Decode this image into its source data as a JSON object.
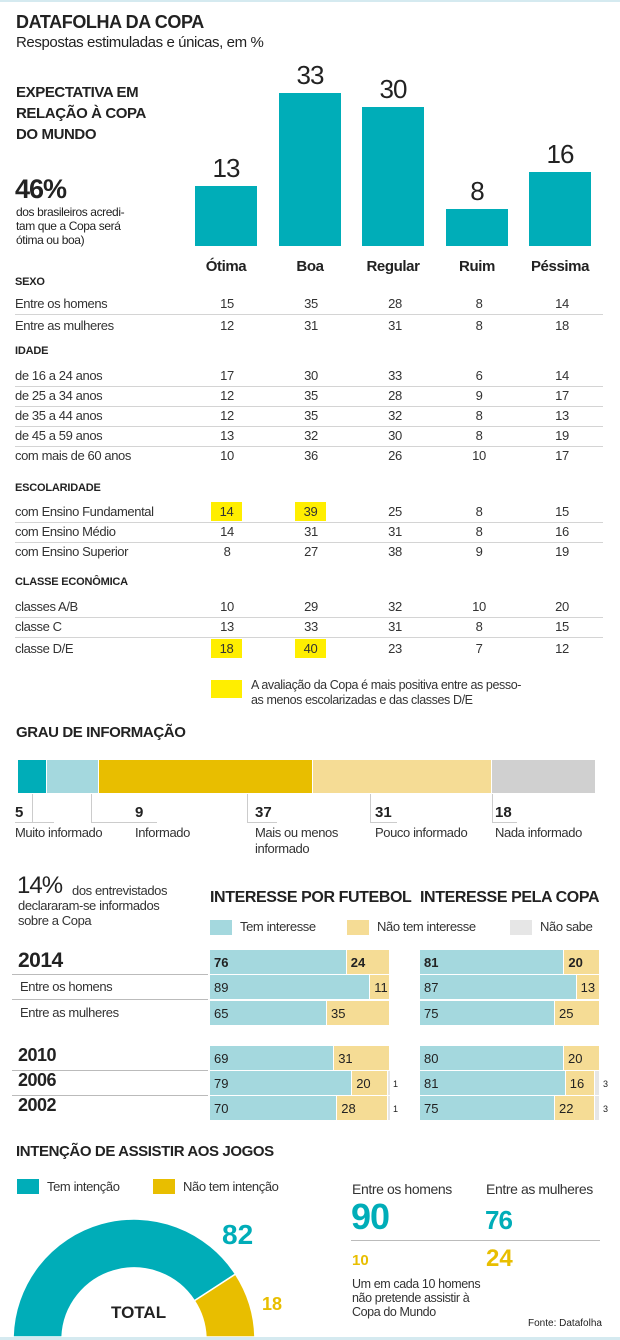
{
  "header": {
    "title": "DATAFOLHA DA COPA",
    "subtitle": "Respostas estimuladas e únicas, em %"
  },
  "intro": {
    "heading_lines": [
      "EXPECTATIVA EM",
      "RELAÇÃO À COPA",
      "DO MUNDO"
    ],
    "stat": "46%",
    "stat_lines": [
      "dos brasileiros acredi-",
      "tam que a Copa será",
      "ótima ou boa)"
    ]
  },
  "colors": {
    "teal": "#00adb8",
    "light_teal": "#a4d8de",
    "gold": "#e8be00",
    "light_gold": "#f5dc95",
    "gray": "#d0d0d0",
    "light_gray": "#e6e6e6",
    "highlight": "#ffee00"
  },
  "chart_data": [
    {
      "type": "bar",
      "title": "EXPECTATIVA EM RELAÇÃO À COPA DO MUNDO",
      "categories": [
        "Ótima",
        "Boa",
        "Regular",
        "Ruim",
        "Péssima"
      ],
      "values": [
        13,
        33,
        30,
        8,
        16
      ],
      "color": "#00adb8",
      "grid": false
    },
    {
      "type": "table",
      "columns": [
        "Ótima",
        "Boa",
        "Regular",
        "Ruim",
        "Péssima"
      ],
      "groups": [
        {
          "name": "SEXO",
          "rows": [
            {
              "label": "Entre os homens",
              "values": [
                "15",
                "35",
                "28",
                "8",
                "14"
              ]
            },
            {
              "label": "Entre as mulheres",
              "values": [
                "12",
                "31",
                "31",
                "8",
                "18"
              ]
            }
          ]
        },
        {
          "name": "IDADE",
          "rows": [
            {
              "label": "de 16 a 24 anos",
              "values": [
                "17",
                "30",
                "33",
                "6",
                "14"
              ]
            },
            {
              "label": "de 25 a 34 anos",
              "values": [
                "12",
                "35",
                "28",
                "9",
                "17"
              ]
            },
            {
              "label": "de 35 a 44 anos",
              "values": [
                "12",
                "35",
                "32",
                "8",
                "13"
              ]
            },
            {
              "label": "de 45 a 59 anos",
              "values": [
                "13",
                "32",
                "30",
                "8",
                "19"
              ]
            },
            {
              "label": "com mais de 60 anos",
              "values": [
                "10",
                "36",
                "26",
                "10",
                "17"
              ]
            }
          ]
        },
        {
          "name": "ESCOLARIDADE",
          "rows": [
            {
              "label": "com Ensino Fundamental",
              "values": [
                "14",
                "39",
                "25",
                "8",
                "15"
              ],
              "highlight": [
                0,
                1
              ]
            },
            {
              "label": "com Ensino Médio",
              "values": [
                "14",
                "31",
                "31",
                "8",
                "16"
              ]
            },
            {
              "label": "com Ensino Superior",
              "values": [
                "8",
                "27",
                "38",
                "9",
                "19"
              ]
            }
          ]
        },
        {
          "name": "CLASSE ECONÔMICA",
          "rows": [
            {
              "label": "classes A/B",
              "values": [
                "10",
                "29",
                "32",
                "10",
                "20"
              ]
            },
            {
              "label": "classe C",
              "values": [
                "13",
                "33",
                "31",
                "8",
                "15"
              ]
            },
            {
              "label": "classe D/E",
              "values": [
                "18",
                "40",
                "23",
                "7",
                "12"
              ],
              "highlight": [
                0,
                1
              ]
            }
          ]
        }
      ],
      "highlight_note_lines": [
        "A avaliação da Copa é mais positiva entre as pesso-",
        "as menos escolarizadas e das classes D/E"
      ]
    },
    {
      "type": "bar",
      "stacked": true,
      "orientation": "horizontal",
      "title": "GRAU DE INFORMAÇÃO",
      "segments": [
        {
          "label": "Muito informado",
          "value": 5,
          "color": "#00adb8"
        },
        {
          "label": "Informado",
          "value": 9,
          "color": "#a4d8de"
        },
        {
          "label": "Mais ou menos informado",
          "value": 37,
          "color": "#e8be00"
        },
        {
          "label": "Pouco informado",
          "value": 31,
          "color": "#f5dc95"
        },
        {
          "label": "Nada informado",
          "value": 18,
          "color": "#d0d0d0"
        }
      ]
    },
    {
      "type": "bar",
      "stacked": true,
      "orientation": "horizontal",
      "categories": [
        "2014",
        "Entre os homens",
        "Entre as mulheres",
        "2010",
        "2006",
        "2002"
      ],
      "legend": [
        {
          "name": "Tem interesse",
          "color": "#a4d8de"
        },
        {
          "name": "Não tem interesse",
          "color": "#f5dc95"
        },
        {
          "name": "Não sabe",
          "color": "#e6e6e6"
        }
      ],
      "panels": [
        {
          "title": "INTERESSE POR FUTEBOL",
          "series": [
            {
              "name": "Tem interesse",
              "values": [
                76,
                89,
                65,
                69,
                79,
                70
              ]
            },
            {
              "name": "Não tem interesse",
              "values": [
                24,
                11,
                35,
                31,
                20,
                28
              ]
            },
            {
              "name": "Não sabe",
              "values": [
                null,
                null,
                null,
                null,
                1,
                1
              ]
            }
          ]
        },
        {
          "title": "INTERESSE PELA COPA",
          "series": [
            {
              "name": "Tem interesse",
              "values": [
                81,
                87,
                75,
                80,
                81,
                75
              ]
            },
            {
              "name": "Não tem interesse",
              "values": [
                20,
                13,
                25,
                20,
                16,
                22
              ]
            },
            {
              "name": "Não sabe",
              "values": [
                null,
                null,
                null,
                null,
                3,
                3
              ]
            }
          ]
        }
      ]
    },
    {
      "type": "pie",
      "donut": true,
      "title": "INTENÇÃO DE ASSISTIR AOS JOGOS",
      "center_label": "TOTAL",
      "slices": [
        {
          "name": "Tem intenção",
          "value": 82,
          "color": "#00adb8"
        },
        {
          "name": "Não tem intenção",
          "value": 18,
          "color": "#e8be00"
        }
      ],
      "breakdown": [
        {
          "label": "Entre os homens",
          "values": [
            90,
            10
          ]
        },
        {
          "label": "Entre as mulheres",
          "values": [
            76,
            24
          ]
        }
      ]
    }
  ],
  "info_stat": {
    "value": "14%",
    "first_line": "dos entrevistados",
    "lines": [
      "declararam-se informados",
      "sobre a Copa"
    ]
  },
  "intention_note_lines": [
    "Um em cada 10 homens",
    "não pretende assistir à",
    "Copa do Mundo"
  ],
  "source": "Fonte: Datafolha"
}
